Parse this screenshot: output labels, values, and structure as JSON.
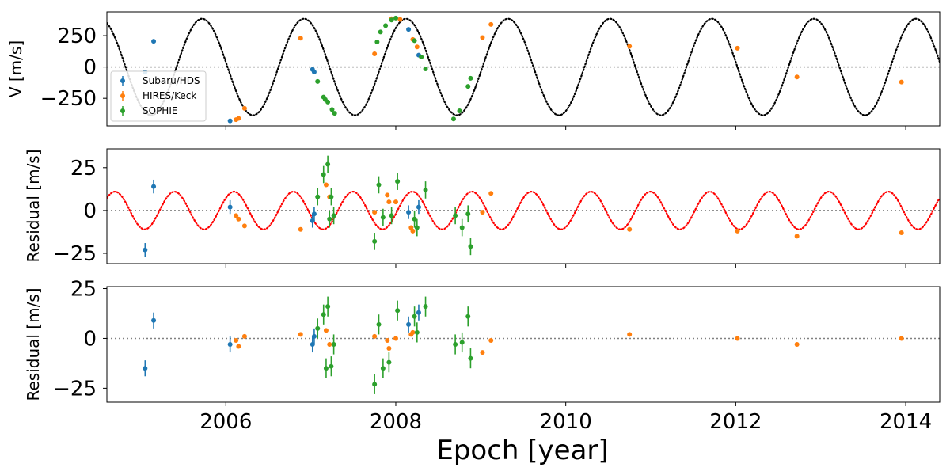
{
  "colors": {
    "subaru": "#1f77b4",
    "hires": "#ff7f0e",
    "sophie": "#2ca02c",
    "model": "#000000",
    "residual_model": "#ff0000",
    "zero_line": "#808080"
  },
  "legend": {
    "entries": [
      "Subaru/HDS",
      "HIRES/Keck",
      "SOPHIE"
    ]
  },
  "xlabel": "Epoch [year]",
  "chart_data": [
    {
      "type": "scatter",
      "panel": "rv",
      "ylabel": "V [m/s]",
      "ylim": [
        -470,
        440
      ],
      "yticks": [
        250,
        0,
        -250
      ],
      "ytick_labels": [
        "250",
        "0",
        "−250"
      ],
      "xlim": [
        2004.6,
        2014.4
      ],
      "model": {
        "type": "sine",
        "amplitude": 385,
        "period": 1.2,
        "phase_ref": 2005.42,
        "style": "dotted",
        "color": "#000000"
      },
      "series": [
        {
          "name": "Subaru/HDS",
          "points": [
            [
              2005.05,
              -40,
              0
            ],
            [
              2005.15,
              205,
              0
            ],
            [
              2006.05,
              -430,
              0
            ],
            [
              2007.02,
              -20,
              0
            ],
            [
              2007.04,
              -40,
              0
            ],
            [
              2008.15,
              300,
              0
            ],
            [
              2008.27,
              95,
              0
            ]
          ]
        },
        {
          "name": "HIRES/Keck",
          "points": [
            [
              2006.12,
              -420,
              0
            ],
            [
              2006.15,
              -410,
              0
            ],
            [
              2006.22,
              -330,
              0
            ],
            [
              2006.88,
              230,
              0
            ],
            [
              2007.75,
              105,
              0
            ],
            [
              2007.95,
              385,
              0
            ],
            [
              2008.05,
              380,
              0
            ],
            [
              2008.2,
              220,
              0
            ],
            [
              2008.25,
              160,
              0
            ],
            [
              2009.02,
              235,
              0
            ],
            [
              2009.12,
              340,
              0
            ],
            [
              2010.75,
              165,
              0
            ],
            [
              2012.02,
              150,
              0
            ],
            [
              2012.72,
              -80,
              0
            ],
            [
              2013.95,
              -120,
              0
            ]
          ]
        },
        {
          "name": "SOPHIE",
          "points": [
            [
              2007.08,
              -115,
              0
            ],
            [
              2007.15,
              -240,
              0
            ],
            [
              2007.17,
              -260,
              0
            ],
            [
              2007.2,
              -280,
              0
            ],
            [
              2007.25,
              -340,
              0
            ],
            [
              2007.28,
              -370,
              0
            ],
            [
              2007.78,
              200,
              0
            ],
            [
              2007.82,
              280,
              0
            ],
            [
              2007.88,
              330,
              0
            ],
            [
              2007.95,
              375,
              0
            ],
            [
              2008.0,
              390,
              0
            ],
            [
              2008.22,
              210,
              0
            ],
            [
              2008.3,
              80,
              0
            ],
            [
              2008.35,
              -15,
              0
            ],
            [
              2008.68,
              -415,
              0
            ],
            [
              2008.75,
              -350,
              0
            ],
            [
              2008.85,
              -155,
              0
            ],
            [
              2008.88,
              -90,
              0
            ]
          ]
        }
      ]
    },
    {
      "type": "scatter",
      "panel": "residual",
      "ylabel": "Residual [m/s]",
      "ylim": [
        -31,
        36
      ],
      "yticks": [
        25,
        0,
        -25
      ],
      "ytick_labels": [
        "25",
        "0",
        "−25"
      ],
      "xlim": [
        2004.6,
        2014.4
      ],
      "model": {
        "type": "sine",
        "amplitude": 11,
        "period": 0.7,
        "phase_ref": 2005.22,
        "style": "dotted",
        "color": "#ff0000"
      },
      "series": [
        {
          "name": "Subaru/HDS",
          "points": [
            [
              2005.05,
              -23,
              4
            ],
            [
              2005.15,
              14,
              4
            ],
            [
              2006.05,
              2,
              4
            ],
            [
              2007.02,
              -6,
              4
            ],
            [
              2007.04,
              -2,
              4
            ],
            [
              2008.15,
              -1,
              4
            ],
            [
              2008.27,
              2,
              4
            ]
          ]
        },
        {
          "name": "HIRES/Keck",
          "points": [
            [
              2006.12,
              -3,
              1
            ],
            [
              2006.15,
              -5,
              1
            ],
            [
              2006.22,
              -9,
              1
            ],
            [
              2006.88,
              -11,
              1
            ],
            [
              2007.18,
              15,
              1
            ],
            [
              2007.22,
              8,
              1
            ],
            [
              2007.75,
              -1,
              1
            ],
            [
              2007.9,
              9,
              1
            ],
            [
              2007.92,
              5,
              1
            ],
            [
              2008.0,
              5,
              1
            ],
            [
              2008.18,
              -10,
              1
            ],
            [
              2008.2,
              -12,
              1
            ],
            [
              2009.02,
              -1,
              1
            ],
            [
              2009.12,
              10,
              1
            ],
            [
              2010.75,
              -11,
              1
            ],
            [
              2012.02,
              -12,
              1
            ],
            [
              2012.72,
              -15,
              1
            ],
            [
              2013.95,
              -13,
              1
            ]
          ]
        },
        {
          "name": "SOPHIE",
          "points": [
            [
              2007.08,
              8,
              5
            ],
            [
              2007.15,
              21,
              5
            ],
            [
              2007.2,
              27,
              5
            ],
            [
              2007.22,
              -5,
              5
            ],
            [
              2007.24,
              8,
              5
            ],
            [
              2007.27,
              -3,
              5
            ],
            [
              2007.75,
              -18,
              5
            ],
            [
              2007.8,
              15,
              5
            ],
            [
              2007.85,
              -4,
              5
            ],
            [
              2007.95,
              -3,
              5
            ],
            [
              2008.02,
              17,
              5
            ],
            [
              2008.22,
              -5,
              5
            ],
            [
              2008.25,
              -10,
              5
            ],
            [
              2008.35,
              12,
              5
            ],
            [
              2008.7,
              -3,
              5
            ],
            [
              2008.78,
              -10,
              5
            ],
            [
              2008.85,
              -2,
              5
            ],
            [
              2008.88,
              -21,
              5
            ]
          ]
        }
      ]
    },
    {
      "type": "scatter",
      "panel": "residual2",
      "ylabel": "Residual [m/s]",
      "ylim": [
        -32,
        26
      ],
      "yticks": [
        25,
        0,
        -25
      ],
      "ytick_labels": [
        "25",
        "0",
        "−25"
      ],
      "xlim": [
        2004.6,
        2014.4
      ],
      "xticks": [
        2006,
        2008,
        2010,
        2012,
        2014
      ],
      "xtick_labels": [
        "2006",
        "2008",
        "2010",
        "2012",
        "2014"
      ],
      "series": [
        {
          "name": "Subaru/HDS",
          "points": [
            [
              2005.05,
              -15,
              4
            ],
            [
              2005.15,
              9,
              4
            ],
            [
              2006.05,
              -3,
              4
            ],
            [
              2007.02,
              -3,
              4
            ],
            [
              2007.04,
              1,
              4
            ],
            [
              2008.15,
              7,
              4
            ],
            [
              2008.27,
              13,
              4
            ]
          ]
        },
        {
          "name": "HIRES/Keck",
          "points": [
            [
              2006.12,
              -1,
              1
            ],
            [
              2006.15,
              -4,
              1
            ],
            [
              2006.22,
              1,
              1
            ],
            [
              2006.88,
              2,
              1
            ],
            [
              2007.18,
              4,
              1
            ],
            [
              2007.22,
              -3,
              1
            ],
            [
              2007.75,
              1,
              1
            ],
            [
              2007.9,
              -1,
              1
            ],
            [
              2007.92,
              -5,
              1
            ],
            [
              2008.0,
              0,
              1
            ],
            [
              2008.18,
              2,
              1
            ],
            [
              2008.2,
              3,
              1
            ],
            [
              2009.02,
              -7,
              1
            ],
            [
              2009.12,
              -1,
              1
            ],
            [
              2010.75,
              2,
              1
            ],
            [
              2012.02,
              0,
              1
            ],
            [
              2012.72,
              -3,
              1
            ],
            [
              2013.95,
              0,
              1
            ]
          ]
        },
        {
          "name": "SOPHIE",
          "points": [
            [
              2007.08,
              5,
              5
            ],
            [
              2007.15,
              12,
              5
            ],
            [
              2007.18,
              -15,
              5
            ],
            [
              2007.2,
              16,
              5
            ],
            [
              2007.24,
              -14,
              5
            ],
            [
              2007.27,
              -3,
              5
            ],
            [
              2007.75,
              -23,
              5
            ],
            [
              2007.8,
              7,
              5
            ],
            [
              2007.85,
              -15,
              5
            ],
            [
              2007.92,
              -12,
              5
            ],
            [
              2008.02,
              14,
              5
            ],
            [
              2008.22,
              11,
              5
            ],
            [
              2008.25,
              3,
              5
            ],
            [
              2008.35,
              16,
              5
            ],
            [
              2008.7,
              -3,
              5
            ],
            [
              2008.78,
              -2,
              5
            ],
            [
              2008.85,
              11,
              5
            ],
            [
              2008.88,
              -10,
              5
            ]
          ]
        }
      ]
    }
  ]
}
